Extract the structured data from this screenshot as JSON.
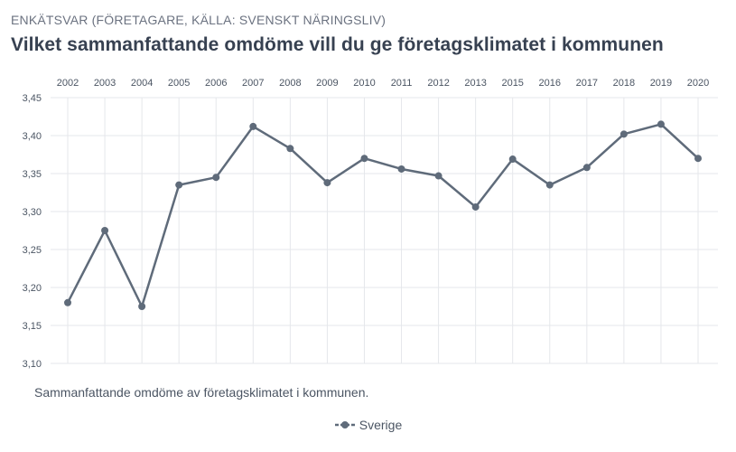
{
  "header": {
    "subtitle": "ENKÄTSVAR (FÖRETAGARE, KÄLLA: SVENSKT NÄRINGSLIV)",
    "title": "Vilket sammanfattande omdöme vill du ge företagsklimatet i kommunen"
  },
  "caption": "Sammanfattande omdöme av företagsklimatet i kommunen.",
  "colors": {
    "series": "#5f6b7a",
    "grid": "#e5e7eb",
    "axis_text": "#4b5563"
  },
  "chart_data": {
    "type": "line",
    "title": "Vilket sammanfattande omdöme vill du ge företagsklimatet i kommunen",
    "xlabel": "",
    "ylabel": "",
    "x_axis_position": "top",
    "categories": [
      "2002",
      "2003",
      "2004",
      "2005",
      "2006",
      "2007",
      "2008",
      "2009",
      "2010",
      "2011",
      "2012",
      "2013",
      "2015",
      "2016",
      "2017",
      "2018",
      "2019",
      "2020"
    ],
    "series": [
      {
        "name": "Sverige",
        "values": [
          3.18,
          3.275,
          3.175,
          3.335,
          3.345,
          3.412,
          3.383,
          3.338,
          3.37,
          3.356,
          3.347,
          3.306,
          3.369,
          3.335,
          3.358,
          3.402,
          3.415,
          3.37
        ]
      }
    ],
    "ylim": [
      3.1,
      3.45
    ],
    "yticks": [
      "3,45",
      "3,40",
      "3,35",
      "3,30",
      "3,25",
      "3,20",
      "3,15",
      "3,10"
    ],
    "grid": true,
    "legend": "bottom-center"
  }
}
